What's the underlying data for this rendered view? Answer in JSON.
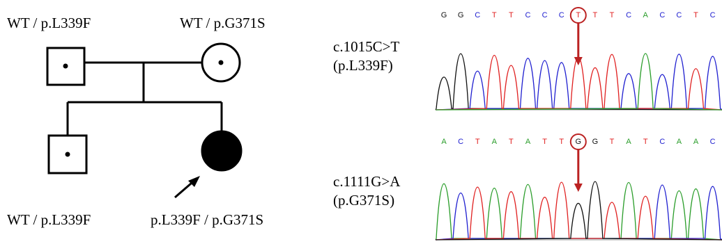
{
  "pedigree": {
    "father": {
      "label": "WT / p.L339F"
    },
    "mother": {
      "label": "WT / p.G371S"
    },
    "son": {
      "label": "WT / p.L339F"
    },
    "proband": {
      "label": "p.L339F / p.G371S"
    }
  },
  "chromatograms": [
    {
      "variant": "c.1015C>T",
      "protein": "(p.L339F)",
      "bases": [
        "G",
        "G",
        "C",
        "T",
        "T",
        "C",
        "C",
        "C",
        "T",
        "T",
        "T",
        "C",
        "A",
        "C",
        "C",
        "T",
        "C"
      ],
      "highlight": 8
    },
    {
      "variant": "c.1111G>A",
      "protein": "(p.G371S)",
      "bases": [
        "A",
        "C",
        "T",
        "A",
        "T",
        "A",
        "T",
        "T",
        "G",
        "G",
        "T",
        "A",
        "T",
        "C",
        "A",
        "A",
        "C"
      ],
      "highlight": 8
    }
  ]
}
